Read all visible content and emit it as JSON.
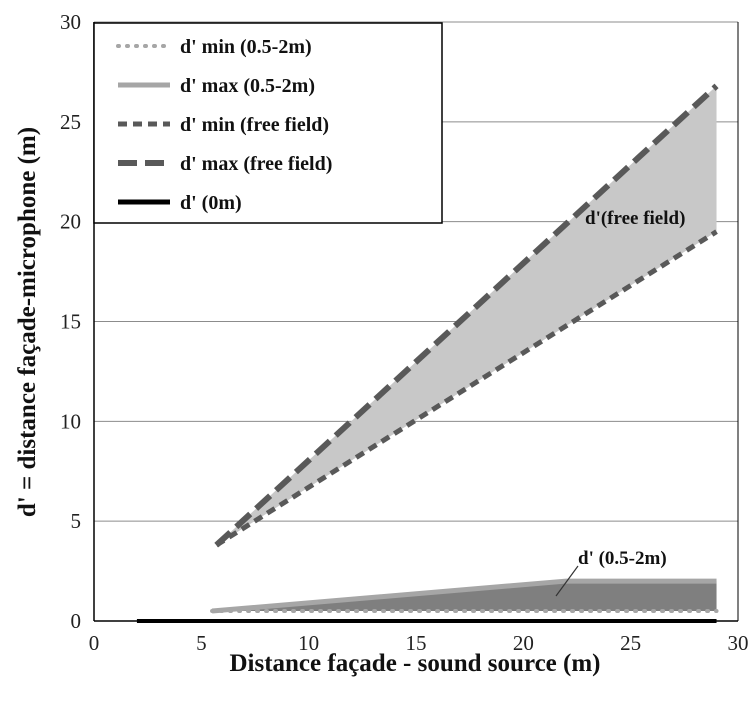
{
  "chart_data": {
    "type": "line",
    "xlabel": "Distance façade - sound source (m)",
    "ylabel": "d' = distance façade-microphone (m)",
    "xlim": [
      0,
      30
    ],
    "ylim": [
      0,
      30
    ],
    "x_ticks": [
      "0",
      "5",
      "10",
      "15",
      "20",
      "25",
      "30"
    ],
    "y_ticks": [
      "0",
      "5",
      "10",
      "15",
      "20",
      "25",
      "30"
    ],
    "grid": "horizontal",
    "legend_position": "top-left",
    "series": [
      {
        "name": "d' min (0.5-2m)",
        "style": "dotted",
        "color": "#a6a6a6",
        "x": [
          5.5,
          29
        ],
        "y": [
          0.5,
          0.5
        ]
      },
      {
        "name": "d' max  (0.5-2m)",
        "style": "solid",
        "color": "#a6a6a6",
        "x": [
          5.5,
          22,
          29
        ],
        "y": [
          0.5,
          2,
          2
        ]
      },
      {
        "name": "d' min (free field)",
        "style": "short-dash",
        "color": "#595959",
        "x": [
          5.7,
          29
        ],
        "y": [
          3.8,
          19.5
        ]
      },
      {
        "name": "d' max (free field)",
        "style": "long-dash",
        "color": "#595959",
        "x": [
          5.7,
          29
        ],
        "y": [
          3.8,
          26.8
        ]
      },
      {
        "name": "d' (0m)",
        "style": "solid",
        "color": "#000000",
        "x": [
          2,
          29
        ],
        "y": [
          0,
          0
        ]
      }
    ],
    "annotations": [
      {
        "text": "d'(free field)",
        "x": 25,
        "y": 20
      },
      {
        "text": "d' (0.5-2m)",
        "x": 22.8,
        "y": 3
      }
    ]
  }
}
